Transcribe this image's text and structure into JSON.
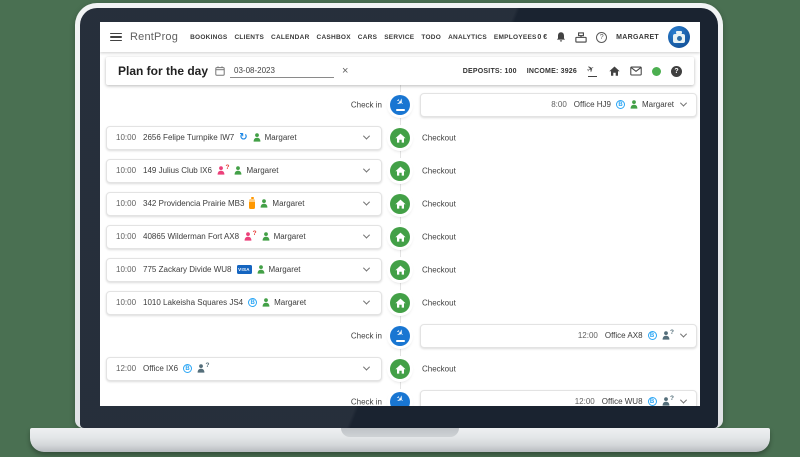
{
  "colors": {
    "background": "#4a7052",
    "checkin_blue": "#1976d2",
    "checkout_green": "#43a047",
    "status_green": "#4caf50",
    "visa_blue": "#1565c0",
    "badge_blue": "#2ba6f5",
    "person_pink": "#ec407a",
    "person_dark": "#546e7a"
  },
  "navbar": {
    "brand": "RentProg",
    "items": [
      "BOOKINGS",
      "CLIENTS",
      "CALENDAR",
      "CASHBOX",
      "CARS",
      "SERVICE",
      "TODO",
      "ANALYTICS",
      "EMPLOYEES"
    ],
    "balance": "0 €",
    "user": "MARGARET"
  },
  "toolbar": {
    "title": "Plan for the day",
    "date_value": "03-08-2023",
    "deposits": "DEPOSITS: 100",
    "income": "INCOME: 3926"
  },
  "icons": {
    "menu-icon": "hamburger",
    "bell-icon": "bell",
    "cashbox-icon": "cash-register",
    "help-icon": "question-circle-outline",
    "calendar-icon": "calendar",
    "clear-date-icon": "x",
    "flight-takeoff-icon": "plane-taking-off",
    "home-icon": "house-filled",
    "mail-icon": "envelope",
    "status-dot-icon": "green-circle",
    "help-filled-icon": "question-circle-filled",
    "checkin-marker-icon": "plane-landing-in-blue-circle",
    "checkout-marker-icon": "house-in-green-circle",
    "chevron-down-icon": "chevron-down",
    "b-circle-icon": "letter-b-in-circle",
    "sync-icon": "refresh-arrows",
    "battery-icon": "orange-battery",
    "visa-badge-icon": "VISA",
    "person-question-icon": "person-with-question-mark",
    "person-unknown-icon": "person-with-question-mark",
    "assignee-icon": "green-person"
  },
  "timeline": {
    "checkin_label": "Check in",
    "checkout_label": "Checkout",
    "rows": [
      {
        "side": "right",
        "type": "checkin",
        "time": "8:00",
        "title": "Office HJ9",
        "badges": [
          "b-circle-icon"
        ],
        "assignee": "Margaret"
      },
      {
        "side": "left",
        "type": "checkout",
        "time": "10:00",
        "title": "2656 Felipe Turnpike IW7",
        "badges": [
          "sync-icon"
        ],
        "assignee": "Margaret"
      },
      {
        "side": "left",
        "type": "checkout",
        "time": "10:00",
        "title": "149 Julius Club IX6",
        "badges": [
          "person-question-icon"
        ],
        "assignee": "Margaret"
      },
      {
        "side": "left",
        "type": "checkout",
        "time": "10:00",
        "title": "342 Providencia Prairie MB3",
        "badges": [
          "battery-icon"
        ],
        "assignee": "Margaret"
      },
      {
        "side": "left",
        "type": "checkout",
        "time": "10:00",
        "title": "40865 Wilderman Fort AX8",
        "badges": [
          "person-question-icon"
        ],
        "assignee": "Margaret"
      },
      {
        "side": "left",
        "type": "checkout",
        "time": "10:00",
        "title": "775 Zackary Divide WU8",
        "badges": [
          "visa-badge-icon"
        ],
        "assignee": "Margaret"
      },
      {
        "side": "left",
        "type": "checkout",
        "time": "10:00",
        "title": "1010 Lakeisha Squares JS4",
        "badges": [
          "b-circle-icon"
        ],
        "assignee": "Margaret"
      },
      {
        "side": "right",
        "type": "checkin",
        "time": "12:00",
        "title": "Office AX8",
        "badges": [
          "b-circle-icon",
          "person-unknown-icon"
        ],
        "assignee": null
      },
      {
        "side": "left",
        "type": "checkout",
        "time": "12:00",
        "title": "Office IX6",
        "badges": [
          "b-circle-icon",
          "person-unknown-icon"
        ],
        "assignee": null
      },
      {
        "side": "right",
        "type": "checkin",
        "time": "12:00",
        "title": "Office WU8",
        "badges": [
          "b-circle-icon",
          "person-unknown-icon"
        ],
        "assignee": null
      }
    ]
  }
}
